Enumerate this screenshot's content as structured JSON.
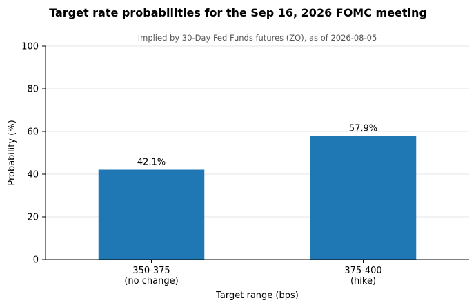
{
  "chart_data": {
    "type": "bar",
    "title": "Target rate probabilities for the Sep 16, 2026 FOMC meeting",
    "subtitle": "Implied by 30-Day Fed Funds futures (ZQ), as of 2026-08-05",
    "categories": [
      [
        "350-375",
        "(no change)"
      ],
      [
        "375-400",
        "(hike)"
      ]
    ],
    "values": [
      42.1,
      57.9
    ],
    "data_labels": [
      "42.1%",
      "57.9%"
    ],
    "xlabel": "Target range (bps)",
    "ylabel": "Probability (%)",
    "ylim": [
      0,
      100
    ],
    "yticks": [
      0,
      20,
      40,
      60,
      80,
      100
    ],
    "grid": "horizontal",
    "bar_color": "#1f77b4"
  }
}
